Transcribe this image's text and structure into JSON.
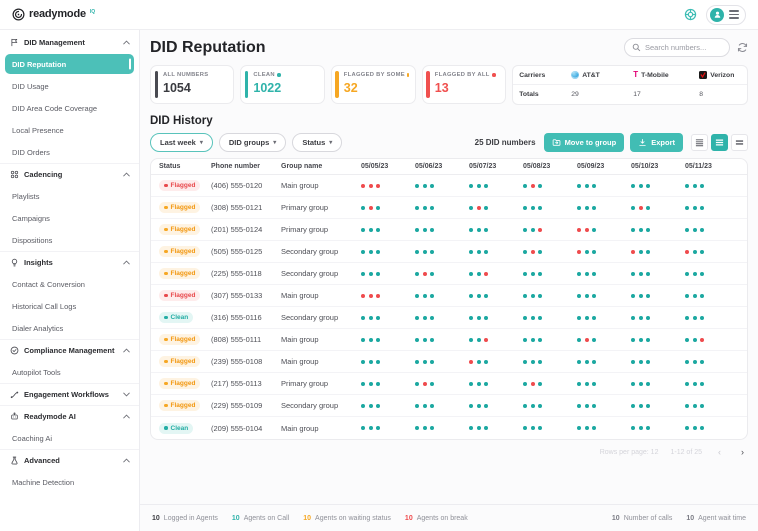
{
  "brand": {
    "name": "readymode",
    "badge": "IQ"
  },
  "sidebar": {
    "sections": [
      {
        "label": "DID Management",
        "icon": "flag",
        "state": "expanded",
        "items": [
          {
            "label": "DID Reputation",
            "selected": true
          },
          {
            "label": "DID Usage"
          },
          {
            "label": "DID Area Code Coverage"
          },
          {
            "label": "Local Presence"
          },
          {
            "label": "DID Orders"
          }
        ]
      },
      {
        "label": "Cadencing",
        "icon": "cadence",
        "state": "expanded",
        "items": [
          {
            "label": "Playlists"
          },
          {
            "label": "Campaigns"
          },
          {
            "label": "Dispositions"
          }
        ]
      },
      {
        "label": "Insights",
        "icon": "bulb",
        "state": "expanded",
        "items": [
          {
            "label": "Contact & Conversion"
          },
          {
            "label": "Historical Call Logs"
          },
          {
            "label": "Dialer Analytics"
          }
        ]
      },
      {
        "label": "Compliance Management",
        "icon": "check-circle",
        "state": "expanded",
        "items": [
          {
            "label": "Autopilot Tools"
          }
        ]
      },
      {
        "label": "Engagement Workflows",
        "icon": "workflow",
        "state": "collapsed",
        "items": []
      },
      {
        "label": "Readymode AI",
        "icon": "robot",
        "state": "expanded",
        "items": [
          {
            "label": "Coaching Ai"
          }
        ]
      },
      {
        "label": "Advanced",
        "icon": "flask",
        "state": "expanded",
        "items": [
          {
            "label": "Machine Detection"
          }
        ]
      }
    ]
  },
  "page": {
    "title": "DID Reputation",
    "search": {
      "placeholder": "Search numbers..."
    },
    "stats": [
      {
        "label": "ALL NUMBERS",
        "value": "1054",
        "variant": "dark",
        "show_dot": false
      },
      {
        "label": "CLEAN",
        "value": "1022",
        "variant": "teal",
        "show_dot": true
      },
      {
        "label": "FLAGGED BY SOME",
        "value": "32",
        "variant": "orange",
        "show_dot": true
      },
      {
        "label": "FLAGGED BY ALL",
        "value": "13",
        "variant": "red",
        "show_dot": true
      }
    ],
    "carriers": {
      "row_header": "Carriers",
      "totals_header": "Totals",
      "columns": [
        {
          "name": "AT&T",
          "icon": "att",
          "total": "29"
        },
        {
          "name": "T-Mobile",
          "icon": "tmobile",
          "total": "17"
        },
        {
          "name": "Verizon",
          "icon": "verizon",
          "total": "8"
        }
      ]
    },
    "history": {
      "title": "DID History",
      "filters": [
        {
          "label": "Last week",
          "active": true
        },
        {
          "label": "DID groups",
          "active": false
        },
        {
          "label": "Status",
          "active": false
        }
      ],
      "count_label": "25 DID numbers",
      "move_to_group_label": "Move to group",
      "export_label": "Export",
      "table": {
        "columns": [
          "Status",
          "Phone number",
          "Group name",
          "05/05/23",
          "05/06/23",
          "05/07/23",
          "05/08/23",
          "05/09/23",
          "05/10/23",
          "05/11/23"
        ],
        "rows": [
          {
            "status": "Flagged",
            "variant": "flagged-red",
            "phone": "(406) 555-0120",
            "group": "Main group",
            "dots": [
              "rrr",
              "ttt",
              "ttt",
              "trt",
              "ttt",
              "ttt",
              "ttt"
            ]
          },
          {
            "status": "Flagged",
            "variant": "flagged-orange",
            "phone": "(308) 555-0121",
            "group": "Primary group",
            "dots": [
              "trt",
              "ttt",
              "trt",
              "ttt",
              "ttt",
              "trt",
              "ttt"
            ]
          },
          {
            "status": "Flagged",
            "variant": "flagged-orange",
            "phone": "(201) 555-0124",
            "group": "Primary group",
            "dots": [
              "ttt",
              "ttt",
              "ttt",
              "ttr",
              "rrt",
              "ttt",
              "ttt"
            ]
          },
          {
            "status": "Flagged",
            "variant": "flagged-orange",
            "phone": "(505) 555-0125",
            "group": "Secondary group",
            "dots": [
              "ttt",
              "ttt",
              "ttt",
              "trt",
              "rtt",
              "rtt",
              "rtt"
            ]
          },
          {
            "status": "Flagged",
            "variant": "flagged-orange",
            "phone": "(225) 555-0118",
            "group": "Secondary group",
            "dots": [
              "ttt",
              "trt",
              "ttr",
              "ttt",
              "ttt",
              "ttt",
              "ttt"
            ]
          },
          {
            "status": "Flagged",
            "variant": "flagged-red",
            "phone": "(307) 555-0133",
            "group": "Main group",
            "dots": [
              "rrr",
              "ttt",
              "ttt",
              "ttt",
              "ttt",
              "ttt",
              "ttt"
            ]
          },
          {
            "status": "Clean",
            "variant": "clean",
            "phone": "(316) 555-0116",
            "group": "Secondary group",
            "dots": [
              "ttt",
              "ttt",
              "ttt",
              "ttt",
              "ttt",
              "ttt",
              "ttt"
            ]
          },
          {
            "status": "Flagged",
            "variant": "flagged-orange",
            "phone": "(808) 555-0111",
            "group": "Main group",
            "dots": [
              "ttt",
              "ttt",
              "ttr",
              "ttt",
              "trt",
              "ttt",
              "ttr"
            ]
          },
          {
            "status": "Flagged",
            "variant": "flagged-orange",
            "phone": "(239) 555-0108",
            "group": "Main group",
            "dots": [
              "ttt",
              "ttt",
              "rtt",
              "ttt",
              "ttt",
              "ttt",
              "ttt"
            ]
          },
          {
            "status": "Flagged",
            "variant": "flagged-orange",
            "phone": "(217) 555-0113",
            "group": "Primary group",
            "dots": [
              "ttt",
              "trt",
              "ttt",
              "trt",
              "ttt",
              "ttt",
              "ttt"
            ]
          },
          {
            "status": "Flagged",
            "variant": "flagged-orange",
            "phone": "(229) 555-0109",
            "group": "Secondary group",
            "dots": [
              "ttt",
              "ttt",
              "ttt",
              "ttt",
              "ttt",
              "ttt",
              "ttt"
            ]
          },
          {
            "status": "Clean",
            "variant": "clean",
            "phone": "(209) 555-0104",
            "group": "Main group",
            "dots": [
              "ttt",
              "ttt",
              "ttt",
              "ttt",
              "ttt",
              "ttt",
              "ttt"
            ]
          }
        ]
      },
      "pagination": {
        "rows_per_page": "Rows per page: 12",
        "range": "1-12 of 25"
      }
    },
    "footer": {
      "left": [
        {
          "value": "10",
          "label": "Logged in Agents",
          "variant": "dark"
        },
        {
          "value": "10",
          "label": "Agents on Call",
          "variant": "teal"
        },
        {
          "value": "10",
          "label": "Agents on waiting status",
          "variant": "orange"
        },
        {
          "value": "10",
          "label": "Agents on break",
          "variant": "red"
        }
      ],
      "right": [
        {
          "value": "10",
          "label": "Number of calls",
          "variant": "gray"
        },
        {
          "value": "10",
          "label": "Agent wait time",
          "variant": "gray"
        }
      ]
    },
    "colors": {
      "teal": "#3DBDB4",
      "teal_dot": "#1BA8A1",
      "orange": "#F6A723",
      "red": "#EF4B4D",
      "dark": "#303136"
    }
  }
}
